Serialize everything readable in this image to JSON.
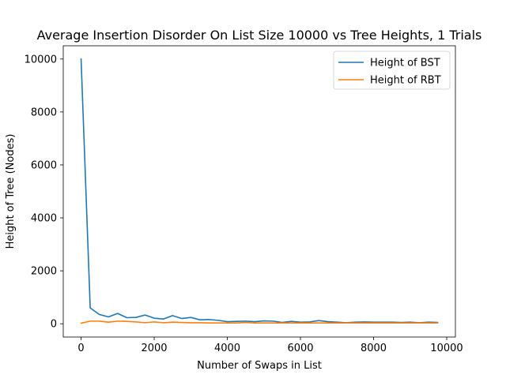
{
  "chart_data": {
    "type": "line",
    "title": "Average Insertion Disorder On List Size 10000 vs Tree Heights, 1 Trials",
    "xlabel": "Number of Swaps in List",
    "ylabel": "Height of Tree (Nodes)",
    "xlim": [
      -487.5,
      10237.5
    ],
    "ylim": [
      -500,
      10500
    ],
    "xticks": [
      0,
      2000,
      4000,
      6000,
      8000,
      10000
    ],
    "yticks": [
      0,
      2000,
      4000,
      6000,
      8000,
      10000
    ],
    "grid": false,
    "legend": "top-right",
    "x": [
      0,
      250,
      500,
      750,
      1000,
      1250,
      1500,
      1750,
      2000,
      2250,
      2500,
      2750,
      3000,
      3250,
      3500,
      3750,
      4000,
      4250,
      4500,
      4750,
      5000,
      5250,
      5500,
      5750,
      6000,
      6250,
      6500,
      6750,
      7000,
      7250,
      7500,
      7750,
      8000,
      8250,
      8500,
      8750,
      9000,
      9250,
      9500,
      9750
    ],
    "series": [
      {
        "name": "Height of BST",
        "color": "#1f77b4",
        "values": [
          10000,
          600,
          350,
          260,
          390,
          230,
          240,
          330,
          210,
          180,
          310,
          200,
          240,
          150,
          160,
          130,
          80,
          90,
          100,
          80,
          110,
          100,
          50,
          90,
          60,
          70,
          120,
          80,
          60,
          40,
          60,
          70,
          60,
          60,
          60,
          50,
          60,
          40,
          60,
          50
        ]
      },
      {
        "name": "Height of RBT",
        "color": "#ff7f0e",
        "values": [
          20,
          100,
          100,
          60,
          100,
          90,
          70,
          40,
          70,
          40,
          60,
          50,
          40,
          40,
          30,
          30,
          30,
          30,
          50,
          30,
          30,
          30,
          30,
          30,
          30,
          30,
          30,
          30,
          30,
          30,
          30,
          30,
          30,
          30,
          30,
          30,
          30,
          30,
          30,
          30
        ]
      }
    ]
  }
}
